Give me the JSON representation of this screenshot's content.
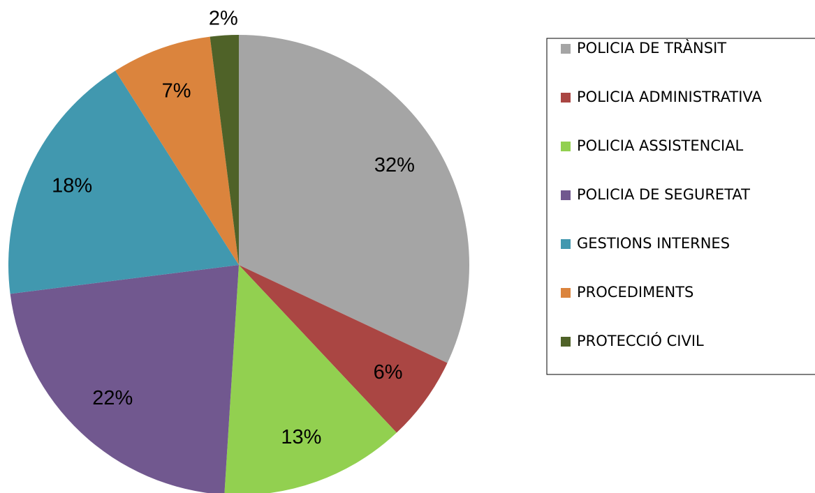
{
  "chart_data": {
    "type": "pie",
    "categories": [
      "POLICIA DE TRÀNSIT",
      "POLICIA ADMINISTRATIVA",
      "POLICIA ASSISTENCIAL",
      "POLICIA DE SEGURETAT",
      "GESTIONS INTERNES",
      "PROCEDIMENTS",
      "PROTECCIÓ CIVIL"
    ],
    "values": [
      32,
      6,
      13,
      22,
      18,
      7,
      2
    ],
    "value_labels": [
      "32%",
      "6%",
      "13%",
      "22%",
      "18%",
      "7%",
      "2%"
    ],
    "colors": [
      "#a5a5a5",
      "#aa4643",
      "#92d050",
      "#71588f",
      "#4198af",
      "#db843d",
      "#4f6228"
    ],
    "legend": "right"
  }
}
